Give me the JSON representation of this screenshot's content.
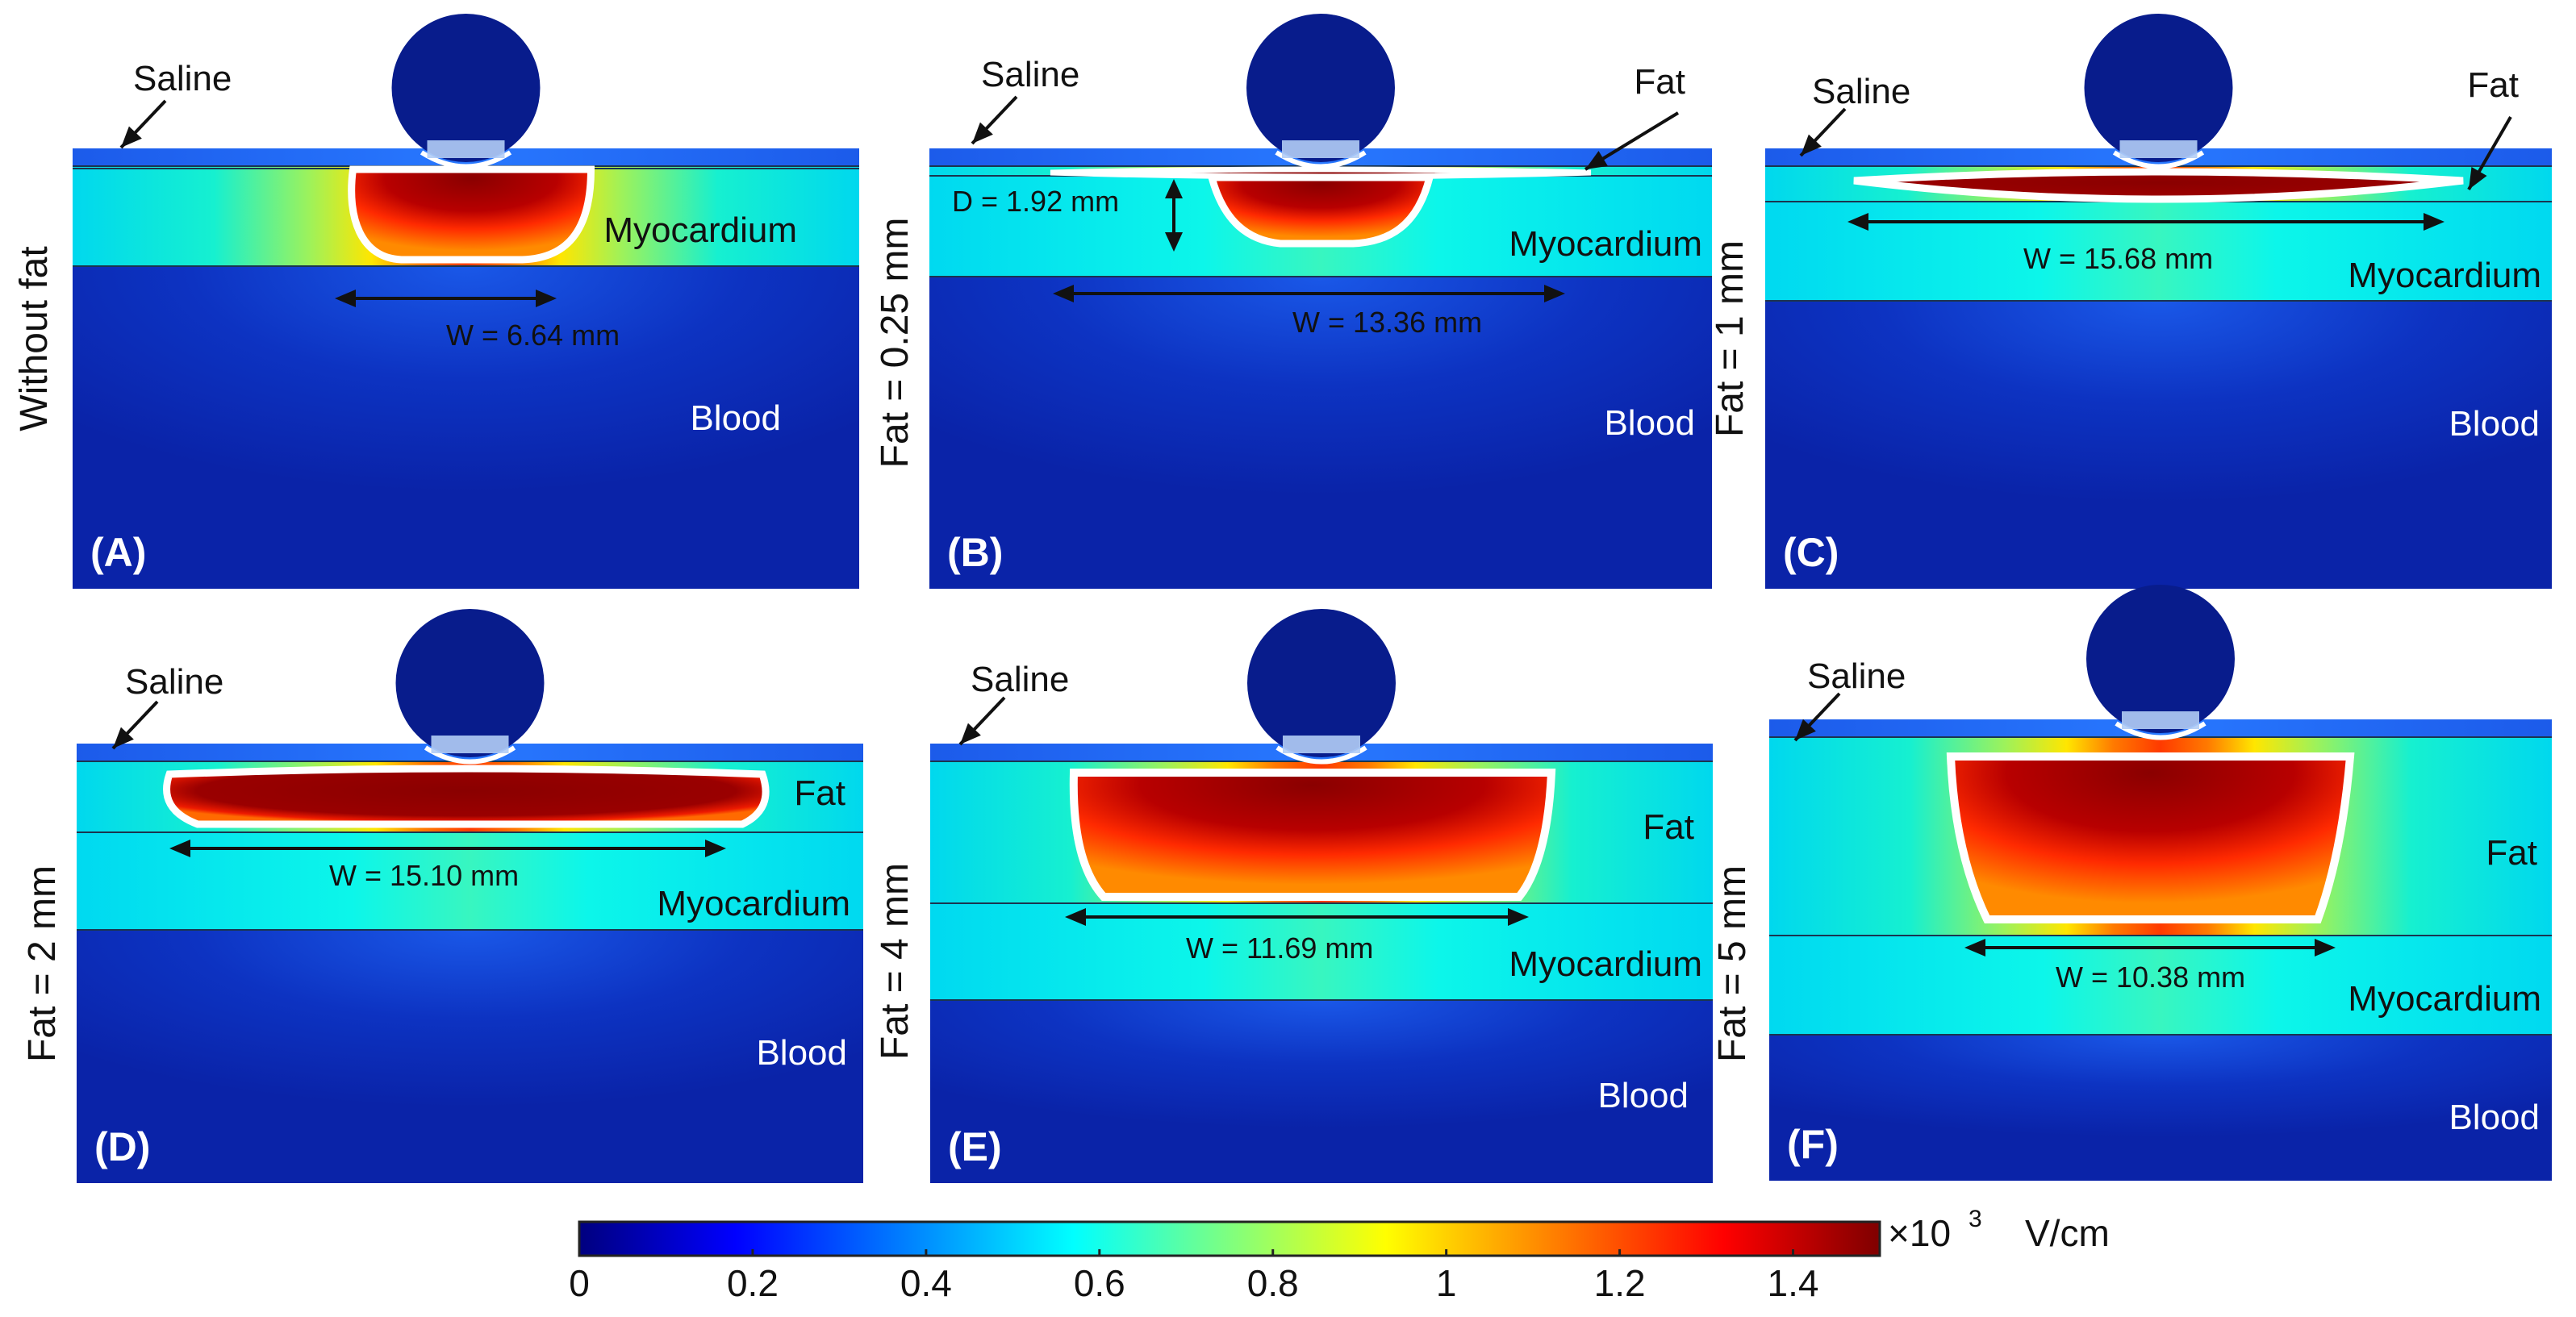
{
  "panels": [
    {
      "id": "A",
      "tag": "(A)",
      "side": "Without fat",
      "fat_mm": 0,
      "labels": {
        "saline": "Saline",
        "fat": "",
        "myocardium": "Myocardium",
        "blood": "Blood"
      },
      "width": "W = 6.64 mm",
      "depth": ""
    },
    {
      "id": "B",
      "tag": "(B)",
      "side": "Fat = 0.25 mm",
      "fat_mm": 0.25,
      "labels": {
        "saline": "Saline",
        "fat": "Fat",
        "myocardium": "Myocardium",
        "blood": "Blood"
      },
      "width": "W = 13.36 mm",
      "depth": "D = 1.92 mm"
    },
    {
      "id": "C",
      "tag": "(C)",
      "side": "Fat = 1 mm",
      "fat_mm": 1,
      "labels": {
        "saline": "Saline",
        "fat": "Fat",
        "myocardium": "Myocardium",
        "blood": "Blood"
      },
      "width": "W = 15.68 mm",
      "depth": ""
    },
    {
      "id": "D",
      "tag": "(D)",
      "side": "Fat = 2 mm",
      "fat_mm": 2,
      "labels": {
        "saline": "Saline",
        "fat": "Fat",
        "myocardium": "Myocardium",
        "blood": "Blood"
      },
      "width": "W = 15.10 mm",
      "depth": ""
    },
    {
      "id": "E",
      "tag": "(E)",
      "side": "Fat = 4 mm",
      "fat_mm": 4,
      "labels": {
        "saline": "Saline",
        "fat": "Fat",
        "myocardium": "Myocardium",
        "blood": "Blood"
      },
      "width": "W = 11.69 mm",
      "depth": ""
    },
    {
      "id": "F",
      "tag": "(F)",
      "side": "Fat = 5 mm",
      "fat_mm": 5,
      "labels": {
        "saline": "Saline",
        "fat": "Fat",
        "myocardium": "Myocardium",
        "blood": "Blood"
      },
      "width": "W = 10.38 mm",
      "depth": ""
    }
  ],
  "colorbar": {
    "ticks": [
      "0",
      "0.2",
      "0.4",
      "0.6",
      "0.8",
      "1",
      "1.2",
      "1.4"
    ],
    "tick_values": [
      0,
      0.2,
      0.4,
      0.6,
      0.8,
      1.0,
      1.2,
      1.4
    ],
    "range": [
      0,
      1.5
    ],
    "multiplier": "×10",
    "exponent": "3",
    "unit": "V/cm",
    "colors": [
      "#00007f",
      "#0000ff",
      "#007fff",
      "#00ffff",
      "#7fff7f",
      "#ffff00",
      "#ff7f00",
      "#ff0000",
      "#7f0000"
    ]
  },
  "colors": {
    "blood": "#0a23a8",
    "saline": "#1e5fe6",
    "electrode": "#081c8c",
    "lesion_outline": "#ffffff"
  }
}
